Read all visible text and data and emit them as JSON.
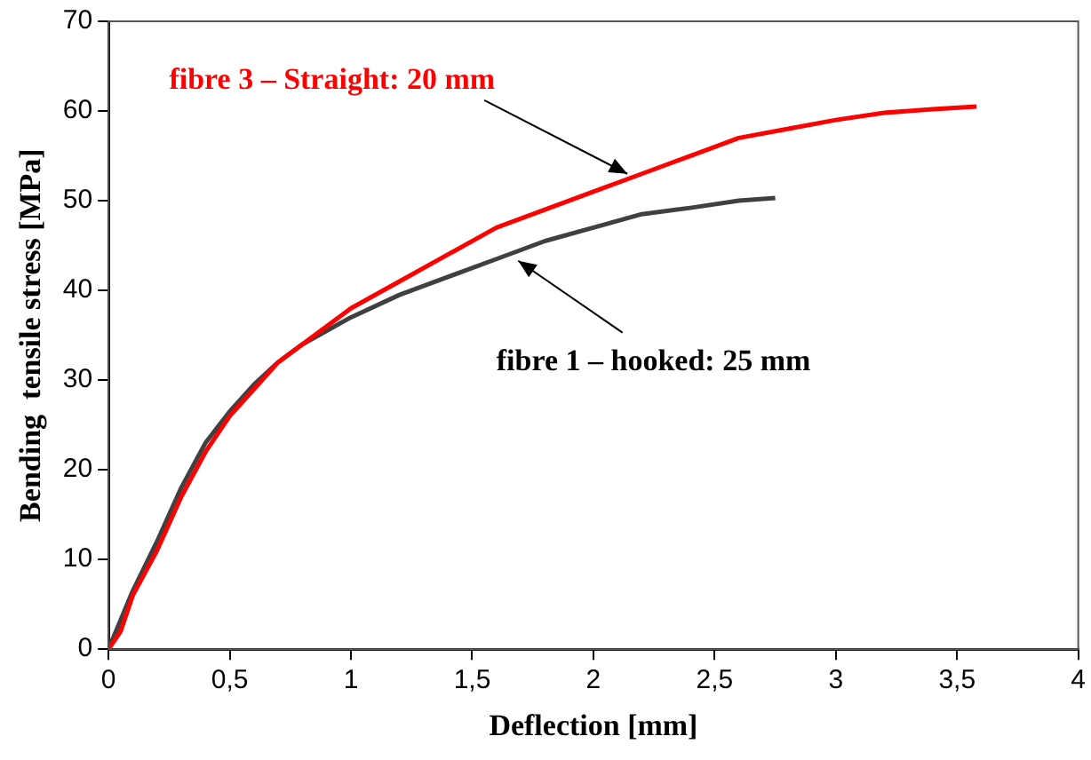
{
  "chart_data": {
    "type": "line",
    "xlabel": "Deflection [mm]",
    "ylabel": "Bending  tensile stress [MPa]",
    "xlim": [
      0,
      4
    ],
    "xticks": [
      0,
      {
        "value": 0.5,
        "label": "0,5"
      },
      1,
      {
        "value": 1.5,
        "label": "1,5"
      },
      2,
      {
        "value": 2.5,
        "label": "2,5"
      },
      3,
      {
        "value": 3.5,
        "label": "3,5"
      },
      4
    ],
    "ylim": [
      0,
      70
    ],
    "yticks": [
      0,
      10,
      20,
      30,
      40,
      50,
      60,
      70
    ],
    "grid": false,
    "legend": false,
    "marker": "none",
    "line_style": "solid",
    "series": [
      {
        "name": "fibre 3 – Straight: 20 mm",
        "color": "#ff0000",
        "x": [
          0,
          0.05,
          0.1,
          0.2,
          0.3,
          0.4,
          0.5,
          0.6,
          0.7,
          0.8,
          0.9,
          1.0,
          1.2,
          1.4,
          1.6,
          1.8,
          2.0,
          2.2,
          2.4,
          2.6,
          2.8,
          3.0,
          3.2,
          3.4,
          3.58
        ],
        "values": [
          0,
          2,
          6,
          11,
          17,
          22,
          26,
          29,
          32,
          34,
          36,
          38,
          41,
          44,
          47,
          49,
          51,
          53,
          55,
          57,
          58,
          59,
          59.8,
          60.2,
          60.5
        ]
      },
      {
        "name": "fibre 1 – hooked: 25 mm",
        "color": "#404040",
        "x": [
          0,
          0.1,
          0.2,
          0.3,
          0.4,
          0.5,
          0.6,
          0.7,
          0.8,
          0.9,
          1.0,
          1.2,
          1.4,
          1.6,
          1.8,
          2.0,
          2.2,
          2.4,
          2.6,
          2.75
        ],
        "values": [
          0,
          6.5,
          12,
          18,
          23,
          26.5,
          29.5,
          32,
          34,
          35.5,
          37,
          39.5,
          41.5,
          43.5,
          45.5,
          47,
          48.5,
          49.2,
          50,
          50.3
        ]
      }
    ]
  }
}
